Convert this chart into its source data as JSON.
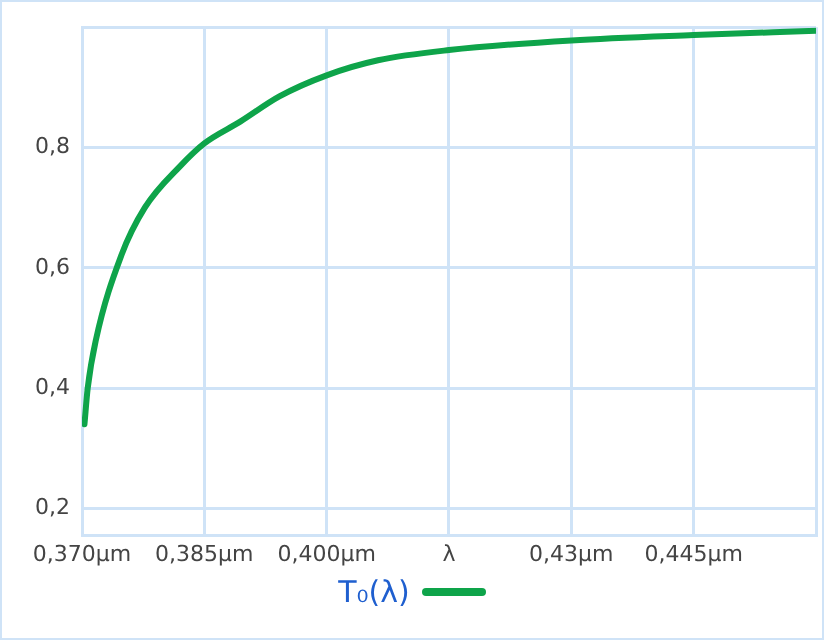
{
  "chart_data": {
    "type": "line",
    "x": [
      0.3703,
      0.3707,
      0.3717,
      0.3748,
      0.3777,
      0.3821,
      0.385,
      0.3894,
      0.3942,
      0.4,
      0.4063,
      0.415,
      0.43,
      0.445,
      0.46
    ],
    "series": [
      {
        "name": "T₀(λ)",
        "color": "#0ea44a",
        "values": [
          0.34,
          0.4,
          0.48,
          0.62,
          0.7,
          0.77,
          0.807,
          0.843,
          0.885,
          0.92,
          0.945,
          0.962,
          0.978,
          0.987,
          0.994
        ]
      }
    ],
    "xlim": [
      0.37,
      0.46
    ],
    "xticks": [
      {
        "value": 0.37,
        "label": "0,370µm"
      },
      {
        "value": 0.385,
        "label": "0,385µm"
      },
      {
        "value": 0.4,
        "label": "0,400µm"
      },
      {
        "value": 0.415,
        "label": "λ"
      },
      {
        "value": 0.43,
        "label": "0,43µm"
      },
      {
        "value": 0.445,
        "label": "0,445µm"
      },
      {
        "value": 0.46,
        "label": null
      }
    ],
    "ylim": [
      0.155,
      1.0
    ],
    "yticks": [
      {
        "value": 0.2,
        "label": "0,2"
      },
      {
        "value": 0.4,
        "label": "0,4"
      },
      {
        "value": 0.6,
        "label": "0,6"
      },
      {
        "value": 0.8,
        "label": "0,8"
      },
      {
        "value": 1.0,
        "label": null
      }
    ],
    "grid": true,
    "legend": "bottom",
    "marker": "none",
    "line_style": "solid"
  }
}
